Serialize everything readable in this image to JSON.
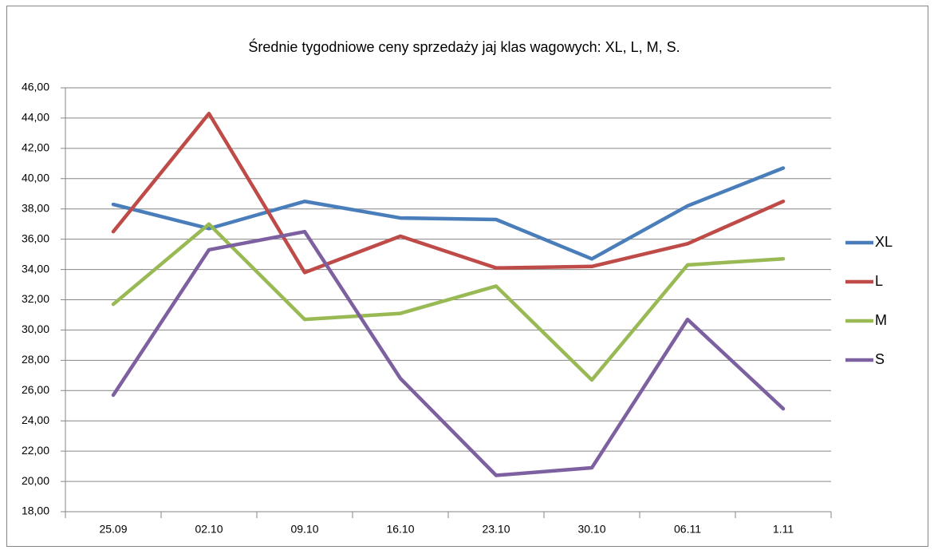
{
  "chart_data": {
    "type": "line",
    "title": "Średnie tygodniowe ceny sprzedaży jaj klas wagowych: XL, L, M, S.",
    "categories": [
      "25.09",
      "02.10",
      "09.10",
      "16.10",
      "23.10",
      "30.10",
      "06.11",
      "1.11"
    ],
    "series": [
      {
        "name": "XL",
        "color": "#4a7ebb",
        "values": [
          38.3,
          36.7,
          38.5,
          37.4,
          37.3,
          34.7,
          38.2,
          40.7
        ]
      },
      {
        "name": "L",
        "color": "#be4b48",
        "values": [
          36.5,
          44.3,
          33.8,
          36.2,
          34.1,
          34.2,
          35.7,
          38.5
        ]
      },
      {
        "name": "M",
        "color": "#98b954",
        "values": [
          31.7,
          37.0,
          30.7,
          31.1,
          32.9,
          26.7,
          34.3,
          34.7
        ]
      },
      {
        "name": "S",
        "color": "#7d60a0",
        "values": [
          25.7,
          35.3,
          36.5,
          26.8,
          20.4,
          20.9,
          30.7,
          24.8
        ]
      }
    ],
    "ylim": [
      18,
      46
    ],
    "yticks": [
      {
        "value": 18,
        "label": "18,00"
      },
      {
        "value": 20,
        "label": "20,00"
      },
      {
        "value": 22,
        "label": "22,00"
      },
      {
        "value": 24,
        "label": "24,00"
      },
      {
        "value": 26,
        "label": "26,00"
      },
      {
        "value": 28,
        "label": "28,00"
      },
      {
        "value": 30,
        "label": "30,00"
      },
      {
        "value": 32,
        "label": "32,00"
      },
      {
        "value": 34,
        "label": "34,00"
      },
      {
        "value": 36,
        "label": "36,00"
      },
      {
        "value": 38,
        "label": "38,00"
      },
      {
        "value": 40,
        "label": "40,00"
      },
      {
        "value": 42,
        "label": "42,00"
      },
      {
        "value": 44,
        "label": "44,00"
      },
      {
        "value": 46,
        "label": "46,00"
      }
    ],
    "grid": true,
    "legend": "right"
  }
}
